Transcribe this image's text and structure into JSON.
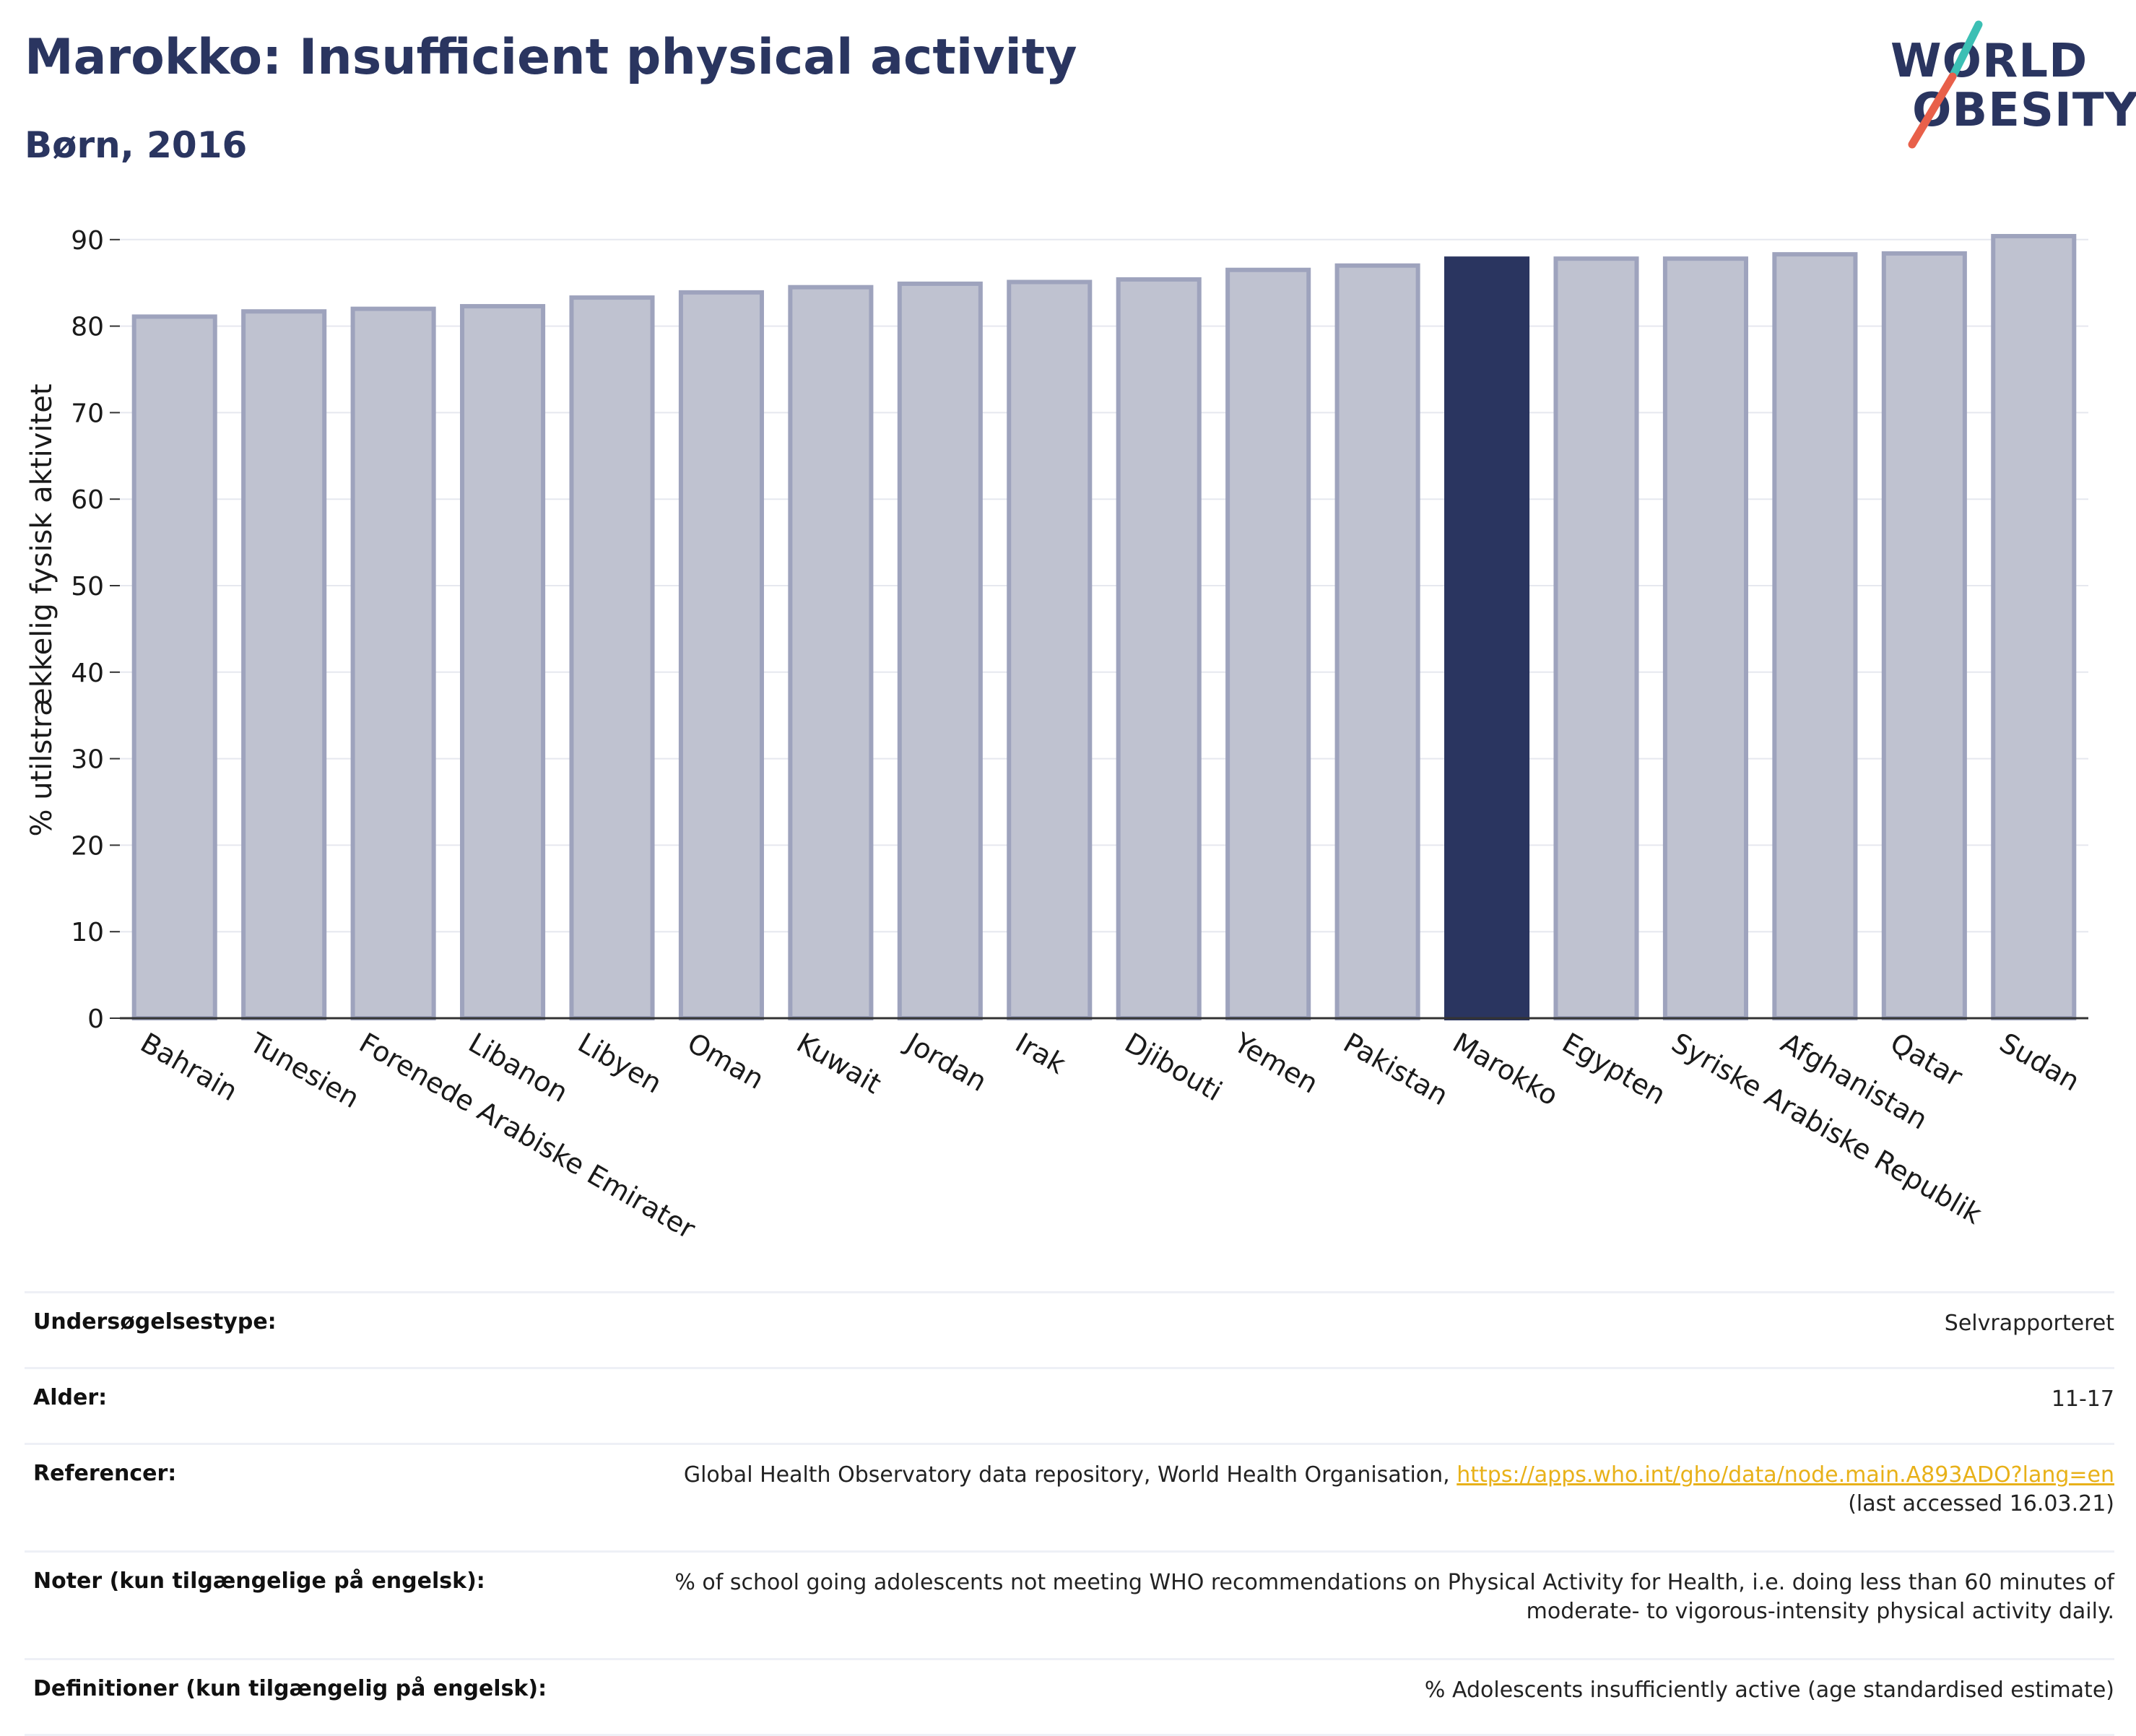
{
  "header": {
    "title": "Marokko: Insufficient physical activity",
    "subtitle": "Børn, 2016"
  },
  "logo": {
    "line1": "WORLD",
    "line2": "OBESITY",
    "colors": {
      "text": "#2a3560",
      "slash_teal": "#3cbfb4",
      "slash_red": "#e8604a"
    }
  },
  "chart_data": {
    "type": "bar",
    "title": "",
    "xlabel": "",
    "ylabel": "% utilstrækkelig fysisk aktivitet",
    "ylim": [
      0,
      92
    ],
    "yticks": [
      0,
      10,
      20,
      30,
      40,
      50,
      60,
      70,
      80,
      90
    ],
    "grid": true,
    "categories": [
      "Bahrain",
      "Tunesien",
      "Forenede Arabiske Emirater",
      "Libanon",
      "Libyen",
      "Oman",
      "Kuwait",
      "Jordan",
      "Irak",
      "Djibouti",
      "Yemen",
      "Pakistan",
      "Marokko",
      "Egypten",
      "Syriske Arabiske Republik",
      "Afghanistan",
      "Qatar",
      "Sudan"
    ],
    "values": [
      81.1,
      81.7,
      82.0,
      82.3,
      83.3,
      83.9,
      84.5,
      84.9,
      85.1,
      85.4,
      86.5,
      87.0,
      87.8,
      87.8,
      87.8,
      88.3,
      88.4,
      90.4
    ],
    "highlight": "Marokko",
    "colors": {
      "bar": "#bfc2d0",
      "bar_edge": "#9ea3bd",
      "highlight": "#2a3560"
    }
  },
  "meta": {
    "rows": [
      {
        "key": "Undersøgelsestype:",
        "value": "Selvrapporteret"
      },
      {
        "key": "Alder:",
        "value": "11-17"
      },
      {
        "key": "Referencer:",
        "value": "Global Health Observatory data repository, World Health Organisation,",
        "link": "https://apps.who.int/gho/data/node.main.A893ADO?lang=en",
        "value2": "(last accessed 16.03.21)"
      },
      {
        "key": "Noter (kun tilgængelige på engelsk):",
        "value": "% of school going adolescents not meeting WHO recommendations on Physical Activity for Health, i.e. doing less than 60 minutes of",
        "value2": "moderate- to vigorous-intensity physical activity daily."
      },
      {
        "key": "Definitioner (kun tilgængelig på engelsk):",
        "value": "% Adolescents insufficiently active (age standardised estimate)"
      }
    ]
  }
}
